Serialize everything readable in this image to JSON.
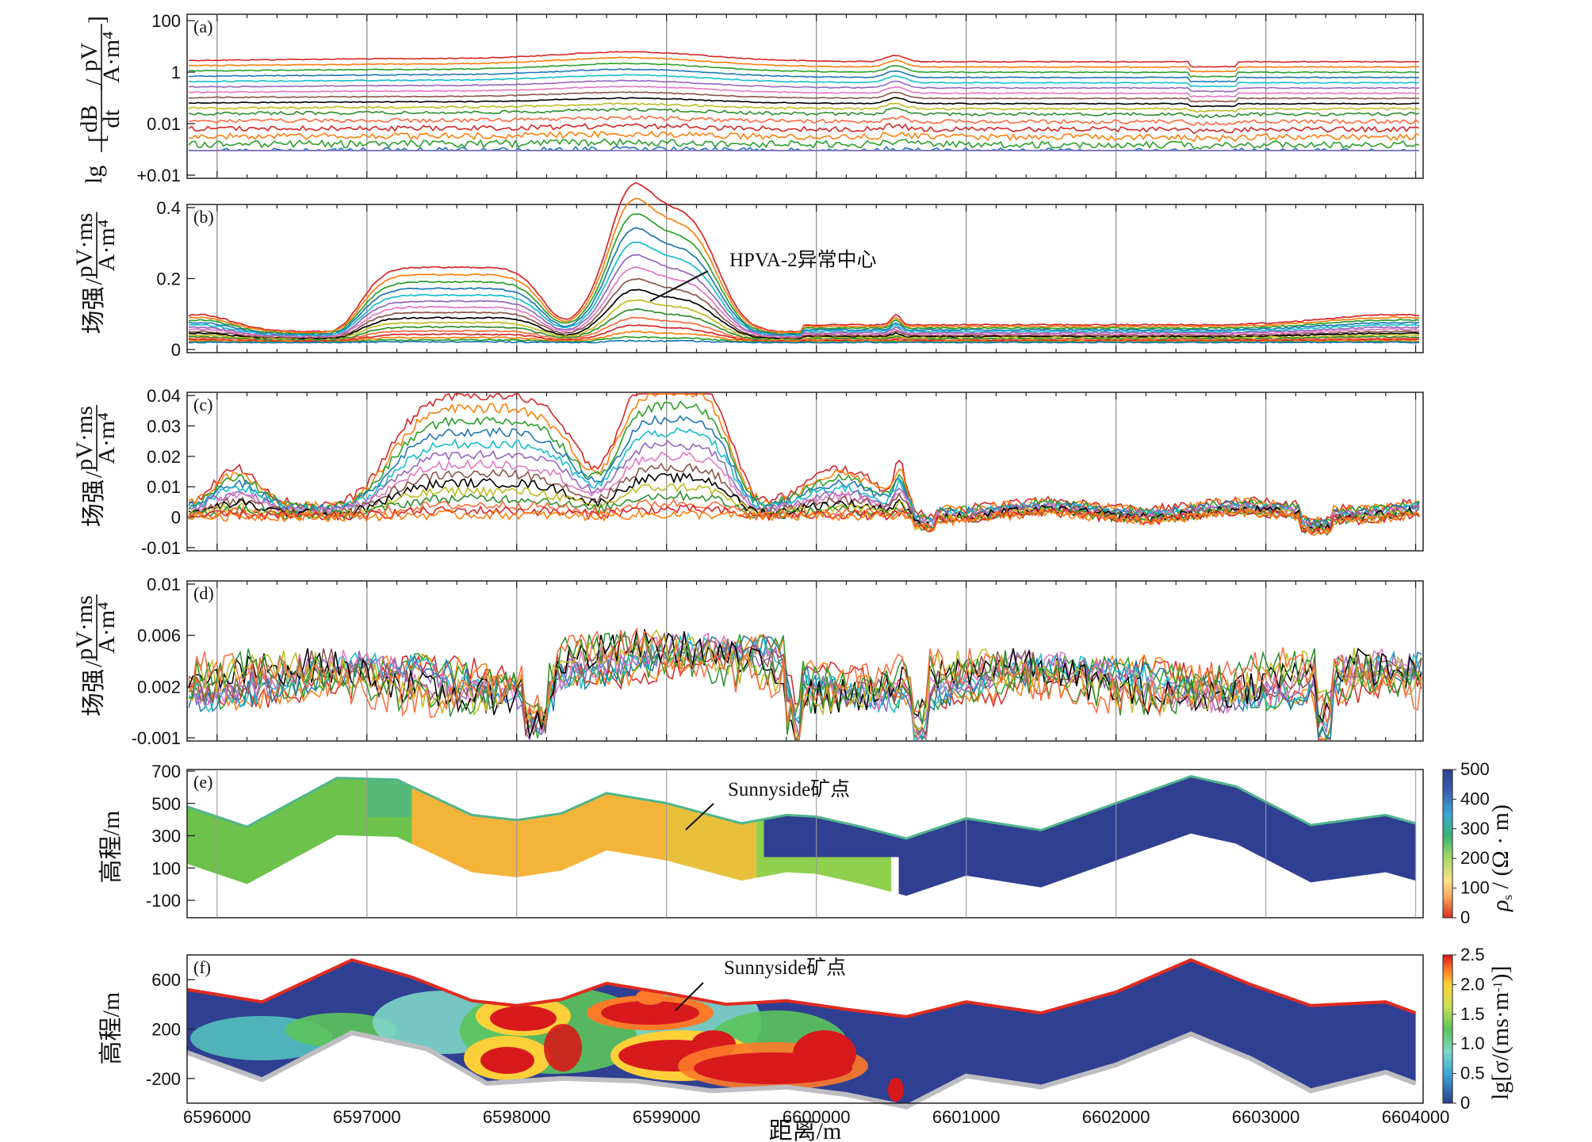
{
  "chart_data": [
    {
      "id": "a",
      "type": "line",
      "panel_label": "(a)",
      "ylabel_html": "lg[dB/dt / (pV/A·m⁴)]",
      "ylabel": {
        "prefix": "lg",
        "frac1_num": "dB",
        "frac1_den": "dt",
        "frac2_num": "pV",
        "frac2_den": "A·m⁴"
      },
      "yticks": [
        "100",
        "1",
        "0.01",
        "+0.01"
      ],
      "scale": "log",
      "grid": "vertical",
      "n_series": 18
    },
    {
      "id": "b",
      "type": "line",
      "panel_label": "(b)",
      "ylabel": {
        "prefix": "场强",
        "frac_num": "pV·ms",
        "frac_den": "A·m⁴"
      },
      "yticks": [
        "0.4",
        "0.2",
        "0"
      ],
      "ylim": [
        -0.02,
        0.4
      ],
      "annotation": "HPVA-2异常中心",
      "grid": "vertical",
      "n_series": 16,
      "peak_value": 0.41,
      "plateau_value": 0.22
    },
    {
      "id": "c",
      "type": "line",
      "panel_label": "(c)",
      "ylabel": {
        "prefix": "场强",
        "frac_num": "pV·ms",
        "frac_den": "A·m⁴"
      },
      "yticks": [
        "0.04",
        "0.03",
        "0.02",
        "0.01",
        "0",
        "-0.01"
      ],
      "ylim": [
        -0.01,
        0.04
      ],
      "grid": "vertical",
      "n_series": 14,
      "peak_value": 0.04
    },
    {
      "id": "d",
      "type": "line",
      "panel_label": "(d)",
      "ylabel": {
        "prefix": "场强",
        "frac_num": "pV·ms",
        "frac_den": "A·m⁴"
      },
      "yticks": [
        "0.01",
        "0.006",
        "0.002",
        "-0.001"
      ],
      "grid": "vertical",
      "n_series": 12
    },
    {
      "id": "e",
      "type": "heatmap",
      "panel_label": "(e)",
      "ylabel": "高程/m",
      "yticks": [
        "700",
        "500",
        "300",
        "100",
        "-100"
      ],
      "ylim": [
        -180,
        700
      ],
      "annotation": "Sunnyside矿点",
      "colorbar": {
        "label_rho": "ρ",
        "label_sub": "s",
        "label_unit": " / (Ω · m)",
        "ticks": [
          "500",
          "400",
          "300",
          "200",
          "100",
          "0"
        ],
        "range": [
          0,
          500
        ]
      },
      "topography_m": [
        [
          6595800,
          480
        ],
        [
          6596200,
          360
        ],
        [
          6596800,
          650
        ],
        [
          6597200,
          640
        ],
        [
          6597700,
          430
        ],
        [
          6598000,
          400
        ],
        [
          6598300,
          440
        ],
        [
          6598600,
          560
        ],
        [
          6599000,
          500
        ],
        [
          6599500,
          380
        ],
        [
          6599800,
          430
        ],
        [
          6600000,
          420
        ],
        [
          6600300,
          360
        ],
        [
          6600600,
          290
        ],
        [
          6601000,
          410
        ],
        [
          6601500,
          340
        ],
        [
          6602000,
          500
        ],
        [
          6602500,
          660
        ],
        [
          6602800,
          600
        ],
        [
          6603300,
          370
        ],
        [
          6603800,
          430
        ],
        [
          6604000,
          380
        ]
      ]
    },
    {
      "id": "f",
      "type": "heatmap",
      "panel_label": "(f)",
      "ylabel": "高程/m",
      "yticks": [
        "600",
        "200",
        "-200"
      ],
      "ylim": [
        -400,
        800
      ],
      "annotation": "Sunnyside矿点",
      "colorbar": {
        "label_pre": "lg[σ/(ms·m",
        "label_sup": "-1",
        "label_post": ")]",
        "ticks": [
          "2.5",
          "2.0",
          "1.5",
          "1.0",
          "0.5",
          "0"
        ],
        "range": [
          0,
          2.5
        ]
      },
      "topography_m": [
        [
          6595800,
          520
        ],
        [
          6596300,
          420
        ],
        [
          6596900,
          760
        ],
        [
          6597300,
          620
        ],
        [
          6597700,
          430
        ],
        [
          6598000,
          390
        ],
        [
          6598300,
          440
        ],
        [
          6598600,
          570
        ],
        [
          6599000,
          490
        ],
        [
          6599400,
          400
        ],
        [
          6599800,
          430
        ],
        [
          6600200,
          360
        ],
        [
          6600600,
          300
        ],
        [
          6601000,
          420
        ],
        [
          6601500,
          330
        ],
        [
          6602000,
          500
        ],
        [
          6602500,
          760
        ],
        [
          6602900,
          560
        ],
        [
          6603300,
          390
        ],
        [
          6603800,
          420
        ],
        [
          6604000,
          330
        ]
      ],
      "bottom_m": [
        [
          6595800,
          10
        ],
        [
          6596300,
          -210
        ],
        [
          6596900,
          170
        ],
        [
          6597400,
          40
        ],
        [
          6597800,
          -240
        ],
        [
          6598300,
          -200
        ],
        [
          6598800,
          -220
        ],
        [
          6599300,
          -300
        ],
        [
          6599800,
          -270
        ],
        [
          6600200,
          -330
        ],
        [
          6600600,
          -430
        ],
        [
          6601000,
          -180
        ],
        [
          6601500,
          -270
        ],
        [
          6602000,
          -90
        ],
        [
          6602500,
          160
        ],
        [
          6602900,
          -40
        ],
        [
          6603300,
          -300
        ],
        [
          6603800,
          -150
        ],
        [
          6604000,
          -240
        ]
      ]
    }
  ],
  "x_axis": {
    "label": "距离/m",
    "ticks": [
      "6596000",
      "6597000",
      "6598000",
      "6599000",
      "6600000",
      "6601000",
      "6602000",
      "6603000",
      "6604000"
    ],
    "range": [
      6595800,
      6604050
    ]
  },
  "series_colors": [
    "#d62728",
    "#ff7f0e",
    "#2ca02c",
    "#1f77b4",
    "#17becf",
    "#9467bd",
    "#e377c2",
    "#8c564b",
    "#000000",
    "#bcbd22",
    "#2f8f2f",
    "#ff6a3d"
  ]
}
